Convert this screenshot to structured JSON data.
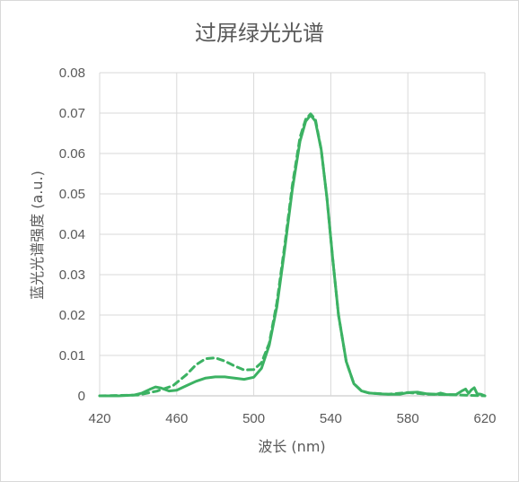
{
  "chart_data": {
    "type": "line",
    "title": "过屏绿光光谱",
    "xlabel": "波长 (nm)",
    "ylabel": "蓝光光谱强度 (a.u.)",
    "xlim": [
      420,
      620
    ],
    "ylim": [
      0,
      0.08
    ],
    "x_ticks": [
      "420",
      "460",
      "500",
      "540",
      "580",
      "620"
    ],
    "y_ticks": [
      "0",
      "0.01",
      "0.02",
      "0.03",
      "0.04",
      "0.05",
      "0.06",
      "0.07",
      "0.08"
    ],
    "grid": true,
    "line_color": "#3cb263",
    "series": [
      {
        "style": "solid",
        "points": [
          [
            420,
            0
          ],
          [
            430,
            0
          ],
          [
            438,
            0.0002
          ],
          [
            442,
            0.0007
          ],
          [
            446,
            0.0016
          ],
          [
            449,
            0.0022
          ],
          [
            452,
            0.0019
          ],
          [
            456,
            0.0012
          ],
          [
            460,
            0.0014
          ],
          [
            465,
            0.0025
          ],
          [
            470,
            0.0036
          ],
          [
            475,
            0.0044
          ],
          [
            480,
            0.0047
          ],
          [
            485,
            0.0047
          ],
          [
            490,
            0.0044
          ],
          [
            495,
            0.0041
          ],
          [
            500,
            0.0046
          ],
          [
            504,
            0.0068
          ],
          [
            508,
            0.0125
          ],
          [
            512,
            0.022
          ],
          [
            516,
            0.036
          ],
          [
            520,
            0.051
          ],
          [
            524,
            0.063
          ],
          [
            527,
            0.068
          ],
          [
            529.5,
            0.0695
          ],
          [
            532,
            0.068
          ],
          [
            535,
            0.061
          ],
          [
            538,
            0.049
          ],
          [
            541,
            0.034
          ],
          [
            544,
            0.02
          ],
          [
            548,
            0.0085
          ],
          [
            552,
            0.003
          ],
          [
            556,
            0.0012
          ],
          [
            560,
            0.0007
          ],
          [
            565,
            0.0005
          ],
          [
            570,
            0.0004
          ],
          [
            576,
            0.0004
          ],
          [
            580,
            0.0008
          ],
          [
            585,
            0.0009
          ],
          [
            590,
            0.0005
          ],
          [
            595,
            0.0004
          ],
          [
            597,
            0.0007
          ],
          [
            600,
            0.0003
          ],
          [
            605,
            0.0003
          ],
          [
            608,
            0.0012
          ],
          [
            610,
            0.0017
          ],
          [
            611.5,
            0.0006
          ],
          [
            613,
            0.0015
          ],
          [
            614.5,
            0.002
          ],
          [
            616,
            0.0005
          ],
          [
            618,
            0.0004
          ],
          [
            620,
            0
          ]
        ]
      },
      {
        "style": "dashed",
        "points": [
          [
            420,
            0
          ],
          [
            440,
            0.0002
          ],
          [
            450,
            0.0012
          ],
          [
            458,
            0.0025
          ],
          [
            465,
            0.0052
          ],
          [
            470,
            0.0077
          ],
          [
            475,
            0.0092
          ],
          [
            480,
            0.0094
          ],
          [
            485,
            0.0086
          ],
          [
            490,
            0.0074
          ],
          [
            495,
            0.0064
          ],
          [
            500,
            0.0065
          ],
          [
            504,
            0.0082
          ],
          [
            508,
            0.013
          ],
          [
            512,
            0.023
          ],
          [
            516,
            0.037
          ],
          [
            520,
            0.052
          ],
          [
            524,
            0.064
          ],
          [
            527,
            0.0685
          ],
          [
            529.5,
            0.0698
          ],
          [
            532,
            0.0685
          ],
          [
            535,
            0.061
          ],
          [
            538,
            0.049
          ],
          [
            541,
            0.034
          ],
          [
            544,
            0.02
          ],
          [
            548,
            0.0085
          ],
          [
            552,
            0.003
          ],
          [
            556,
            0.0012
          ],
          [
            560,
            0.0007
          ],
          [
            570,
            0.0004
          ],
          [
            580,
            0.0008
          ],
          [
            590,
            0.0004
          ],
          [
            600,
            0.0003
          ],
          [
            620,
            0
          ]
        ]
      }
    ]
  }
}
